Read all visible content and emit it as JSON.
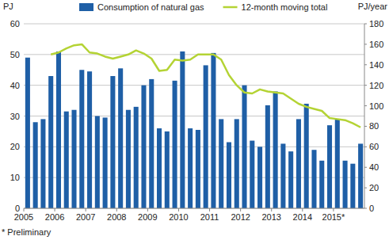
{
  "chart_data": {
    "type": "bar",
    "y_label": "PJ",
    "y2_label": "PJ/year",
    "note": "* Preliminary",
    "categories": [
      "2005",
      null,
      null,
      null,
      "2006",
      null,
      null,
      null,
      "2007",
      null,
      null,
      null,
      "2008",
      null,
      null,
      null,
      "2009",
      null,
      null,
      null,
      "2010",
      null,
      null,
      null,
      "2011",
      null,
      null,
      null,
      "2012",
      null,
      null,
      null,
      "2013",
      null,
      null,
      null,
      "2014",
      null,
      null,
      null,
      "2015*",
      null,
      null,
      null
    ],
    "series": [
      {
        "name": "Consumption of natural gas",
        "type": "bar",
        "color": "#1f5fa6",
        "values": [
          49,
          28,
          29,
          43,
          51,
          31.5,
          32,
          45,
          44.5,
          30,
          29.5,
          43,
          45.5,
          32,
          33,
          40,
          42,
          26,
          25,
          41.5,
          51,
          26,
          25.5,
          46.5,
          50.5,
          29,
          21.5,
          29,
          40,
          22,
          20,
          33.5,
          38,
          21,
          18.5,
          29,
          34,
          19,
          15.5,
          27,
          29,
          15.5,
          14.5,
          21
        ]
      },
      {
        "name": "12-month moving total",
        "type": "line",
        "color": "#b4d334",
        "axis": "y2",
        "values": [
          null,
          null,
          null,
          150,
          152,
          156,
          159,
          160,
          152,
          151,
          148,
          146,
          148,
          150,
          154,
          151,
          146,
          134,
          135,
          145,
          144,
          145,
          150,
          150,
          150,
          145,
          130,
          120,
          113,
          112,
          116,
          114,
          113,
          112,
          107,
          102,
          99,
          97,
          95,
          88,
          87,
          86,
          83,
          79
        ]
      }
    ],
    "ylim": [
      0,
      60
    ],
    "yticks": [
      0,
      10,
      20,
      30,
      40,
      50,
      60
    ],
    "y2lim": [
      0,
      180
    ],
    "y2ticks": [
      0,
      20,
      40,
      60,
      80,
      100,
      120,
      140,
      160,
      180
    ],
    "grid": true,
    "legend": "top"
  }
}
